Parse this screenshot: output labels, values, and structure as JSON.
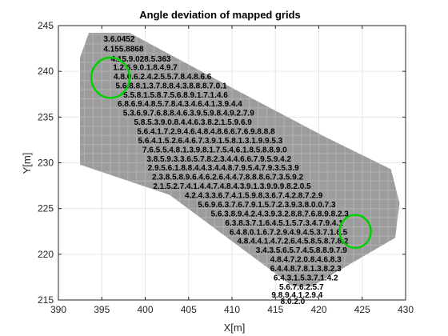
{
  "chart_data": {
    "type": "scatter",
    "title": "Angle deviation of mapped grids",
    "xlabel": "X[m]",
    "ylabel": "Y[m]",
    "xlim": [
      390,
      430
    ],
    "ylim": [
      215,
      245
    ],
    "xticks": [
      390,
      395,
      400,
      405,
      410,
      415,
      420,
      425,
      430
    ],
    "yticks": [
      215,
      220,
      225,
      230,
      235,
      240,
      245
    ],
    "grid": true,
    "colors": {
      "grid_cell": "#a6a6a6",
      "grid_line": "#e6e6e6",
      "axis": "#262626",
      "highlight_circle": "#00d000",
      "label_text": "#000000"
    },
    "highlight_circles": [
      {
        "x": 396.0,
        "y": 239.3,
        "radius": 2.2
      },
      {
        "x": 424.2,
        "y": 222.5,
        "radius": 1.8
      }
    ],
    "region_outline": [
      [
        393.5,
        244.2
      ],
      [
        398.2,
        244.2
      ],
      [
        409.8,
        238.3
      ],
      [
        420.8,
        232.8
      ],
      [
        428.3,
        229.3
      ],
      [
        429.3,
        225.6
      ],
      [
        428.8,
        221.8
      ],
      [
        419.2,
        216.5
      ],
      [
        417.0,
        216.5
      ],
      [
        402.8,
        226.5
      ],
      [
        392.5,
        229.8
      ],
      [
        392.5,
        241.5
      ]
    ],
    "point_labels": [
      {
        "x": 397.0,
        "y": 243.6,
        "text": "3.6.0452"
      },
      {
        "x": 397.5,
        "y": 242.5,
        "text": "4.155.8868"
      },
      {
        "x": 399.5,
        "y": 241.4,
        "text": "4.15.9.028.5.363"
      },
      {
        "x": 400.0,
        "y": 240.5,
        "text": "1.2.6.9.0.1.8.4.9.7"
      },
      {
        "x": 402.0,
        "y": 239.5,
        "text": "4.8.0.6.2.4.2.5.5.7.8.4.8.6.6"
      },
      {
        "x": 403.0,
        "y": 238.5,
        "text": "5.6.8.8.1.3.7.8.8.4.3.8.8.8.7.0.1"
      },
      {
        "x": 403.5,
        "y": 237.5,
        "text": "5.5.8.1.5.8.7.5.6.8.9.1.7.1.4.6"
      },
      {
        "x": 404.0,
        "y": 236.5,
        "text": "6.8.6.9.4.8.5.7.8.4.3.4.6.4.1.3.9.4.4"
      },
      {
        "x": 405.0,
        "y": 235.5,
        "text": "5.3.6.9.7.6.8.8.4.6.3.9.5.9.8.4.9.2.7.9"
      },
      {
        "x": 405.5,
        "y": 234.5,
        "text": "5.8.5.3.9.0.8.4.4.6.3.8.2.1.5.9.6.9"
      },
      {
        "x": 407.0,
        "y": 233.5,
        "text": "5.6.4.1.7.2.9.4.6.4.8.4.8.6.6.7.6.9.8.8.8"
      },
      {
        "x": 407.5,
        "y": 232.5,
        "text": "5.6.4.1.5.2.6.4.6.7.3.9.1.5.8.1.3.1.9.9.5.3"
      },
      {
        "x": 408.0,
        "y": 231.5,
        "text": "7.6.5.5.4.8.1.3.9.8.1.7.5.4.6.1.8.5.8.8.9.0"
      },
      {
        "x": 408.5,
        "y": 230.5,
        "text": "3.8.5.9.3.3.6.5.7.8.2.3.4.4.6.6.7.9.5.9.4.2"
      },
      {
        "x": 409.0,
        "y": 229.5,
        "text": "2.9.5.6.1.8.8.4.4.3.4.4.8.7.9.5.4.7.9.3.5.3.9"
      },
      {
        "x": 409.5,
        "y": 228.5,
        "text": "2.3.8.5.8.9.6.4.6.2.6.4.4.7.8.8.8.6.7.3.5.9.2"
      },
      {
        "x": 410.0,
        "y": 227.5,
        "text": "2.1.5.2.7.4.1.4.4.7.4.8.4.3.9.1.3.9.9.9.8.2.0.5"
      },
      {
        "x": 412.5,
        "y": 226.5,
        "text": "4.2.4.3.3.6.7.4.1.5.9.8.3.6.7.4.2.8.7.2.9"
      },
      {
        "x": 414.0,
        "y": 225.5,
        "text": "5.6.9.6.3.7.6.7.9.1.5.7.2.3.9.3.8.0.0.7.3"
      },
      {
        "x": 415.5,
        "y": 224.5,
        "text": "5.6.3.8.9.4.2.4.3.9.3.2.8.8.7.6.8.9.8.2.3"
      },
      {
        "x": 416.0,
        "y": 223.5,
        "text": "6.3.8.3.7.1.6.4.5.1.5.7.3.4.7.9.4.1"
      },
      {
        "x": 416.5,
        "y": 222.5,
        "text": "6.4.8.0.1.6.7.2.9.4.9.4.5.3.7.1.6.5"
      },
      {
        "x": 417.0,
        "y": 221.5,
        "text": "4.8.4.4.1.4.7.2.6.4.5.8.5.8.7.8.2"
      },
      {
        "x": 418.0,
        "y": 220.5,
        "text": "3.4.3.5.6.5.7.4.5.8.8.9.7.9"
      },
      {
        "x": 418.5,
        "y": 219.5,
        "text": "4.8.4.7.2.0.8.4.6.8.3"
      },
      {
        "x": 418.5,
        "y": 218.5,
        "text": "6.4.4.8.7.8.1.3.8.2.3"
      },
      {
        "x": 418.5,
        "y": 217.5,
        "text": "6.4.3.1.5.3.7.1.4.2"
      },
      {
        "x": 418.0,
        "y": 216.5,
        "text": "5.6.7.6.2.5.7"
      },
      {
        "x": 417.5,
        "y": 215.6,
        "text": "9.8.9.4.1.2.9.4"
      },
      {
        "x": 417.0,
        "y": 214.9,
        "text": "8.0.2.0"
      }
    ]
  }
}
